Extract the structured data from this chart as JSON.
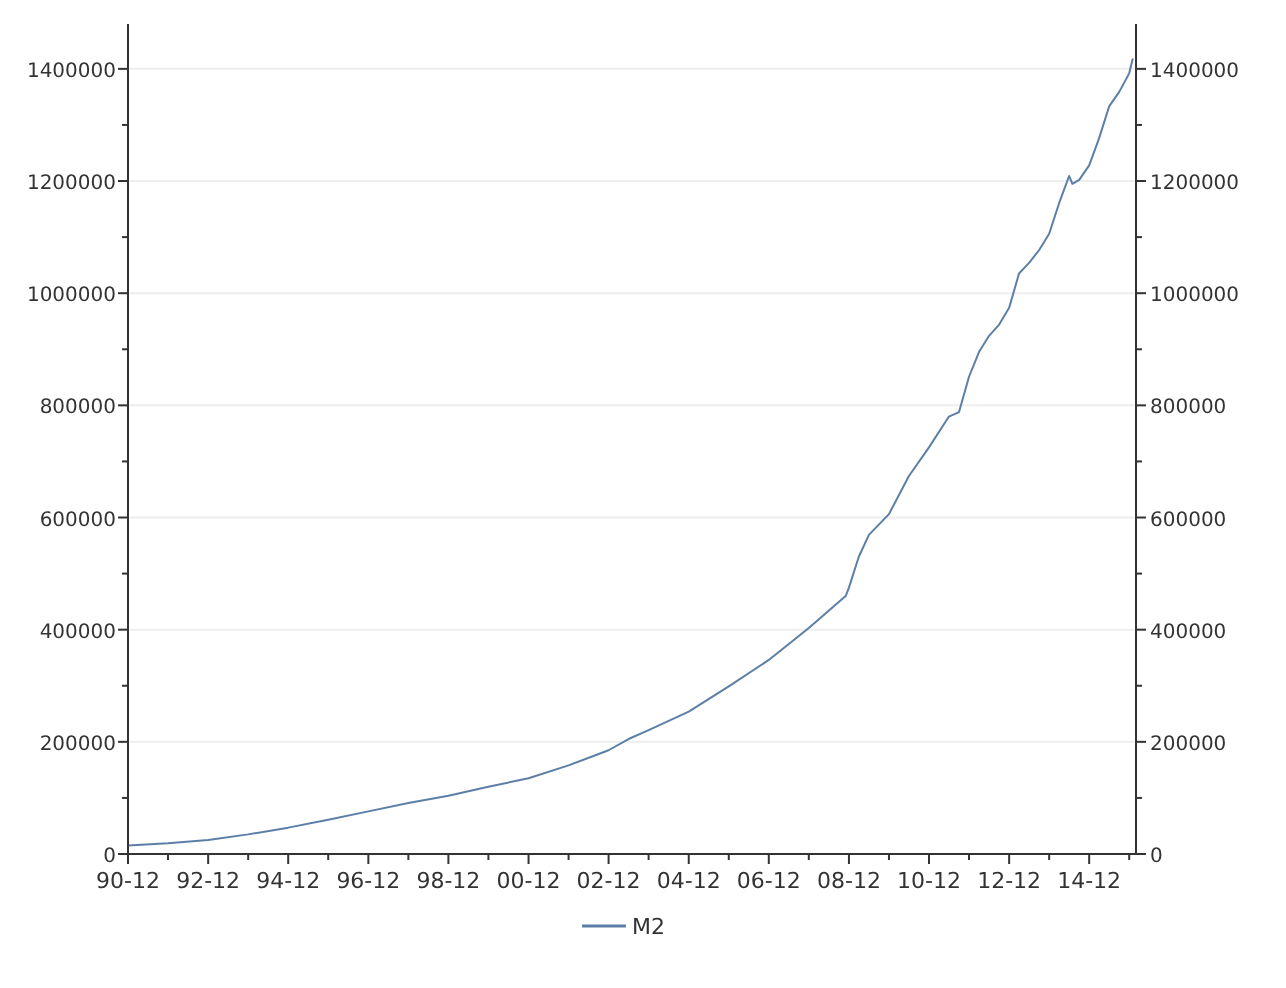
{
  "chart_data": {
    "type": "line",
    "x": [
      "1990-12",
      "1991-12",
      "1992-12",
      "1993-12",
      "1994-12",
      "1995-12",
      "1996-12",
      "1997-12",
      "1998-12",
      "1999-12",
      "2000-12",
      "2001-12",
      "2002-12",
      "2003-06",
      "2003-12",
      "2004-12",
      "2005-12",
      "2006-12",
      "2007-12",
      "2008-11",
      "2008-12",
      "2009-03",
      "2009-06",
      "2009-12",
      "2010-06",
      "2010-12",
      "2011-06",
      "2011-09",
      "2011-12",
      "2012-03",
      "2012-06",
      "2012-09",
      "2012-12",
      "2013-03",
      "2013-06",
      "2013-09",
      "2013-12",
      "2014-03",
      "2014-06",
      "2014-07",
      "2014-09",
      "2014-12",
      "2015-03",
      "2015-06",
      "2015-09",
      "2015-12",
      "2016-01"
    ],
    "series": [
      {
        "name": "M2",
        "color": "#5b7fa6",
        "values": [
          15000,
          19000,
          25000,
          35000,
          47000,
          61000,
          76000,
          91000,
          104000,
          120000,
          135000,
          158000,
          185000,
          205000,
          221000,
          254000,
          299000,
          346000,
          403000,
          460000,
          475000,
          530000,
          569000,
          606000,
          674000,
          725000,
          780000,
          788000,
          851000,
          895000,
          924000,
          944000,
          974000,
          1035000,
          1054000,
          1077000,
          1106000,
          1160000,
          1209000,
          1195000,
          1202000,
          1228000,
          1276000,
          1333000,
          1359000,
          1392000,
          1417000
        ]
      }
    ],
    "xlim": [
      "1990-12",
      "2016-02"
    ],
    "xticks": [
      {
        "value": "1990-12",
        "label": "90-12"
      },
      {
        "value": "1991-12",
        "label": null
      },
      {
        "value": "1992-12",
        "label": "92-12"
      },
      {
        "value": "1993-12",
        "label": null
      },
      {
        "value": "1994-12",
        "label": "94-12"
      },
      {
        "value": "1995-12",
        "label": null
      },
      {
        "value": "1996-12",
        "label": "96-12"
      },
      {
        "value": "1997-12",
        "label": null
      },
      {
        "value": "1998-12",
        "label": "98-12"
      },
      {
        "value": "1999-12",
        "label": null
      },
      {
        "value": "2000-12",
        "label": "00-12"
      },
      {
        "value": "2001-12",
        "label": null
      },
      {
        "value": "2002-12",
        "label": "02-12"
      },
      {
        "value": "2003-12",
        "label": null
      },
      {
        "value": "2004-12",
        "label": "04-12"
      },
      {
        "value": "2005-12",
        "label": null
      },
      {
        "value": "2006-12",
        "label": "06-12"
      },
      {
        "value": "2007-12",
        "label": null
      },
      {
        "value": "2008-12",
        "label": "08-12"
      },
      {
        "value": "2009-12",
        "label": null
      },
      {
        "value": "2010-12",
        "label": "10-12"
      },
      {
        "value": "2011-12",
        "label": null
      },
      {
        "value": "2012-12",
        "label": "12-12"
      },
      {
        "value": "2013-12",
        "label": null
      },
      {
        "value": "2014-12",
        "label": "14-12"
      },
      {
        "value": "2015-12",
        "label": null
      }
    ],
    "ylim": [
      0,
      1480000
    ],
    "yticks": [
      0,
      {
        "value": 100000,
        "label": null
      },
      200000,
      {
        "value": 300000,
        "label": null
      },
      400000,
      {
        "value": 500000,
        "label": null
      },
      600000,
      {
        "value": 700000,
        "label": null
      },
      800000,
      {
        "value": 900000,
        "label": null
      },
      1000000,
      {
        "value": 1100000,
        "label": null
      },
      1200000,
      {
        "value": 1300000,
        "label": null
      },
      1400000
    ],
    "y2lim": [
      0,
      1480000
    ],
    "y2ticks": [
      0,
      {
        "value": 100000,
        "label": null
      },
      200000,
      {
        "value": 300000,
        "label": null
      },
      400000,
      {
        "value": 500000,
        "label": null
      },
      600000,
      {
        "value": 700000,
        "label": null
      },
      800000,
      {
        "value": 900000,
        "label": null
      },
      1000000,
      {
        "value": 1100000,
        "label": null
      },
      1200000,
      {
        "value": 1300000,
        "label": null
      },
      1400000
    ],
    "grid": "y",
    "legend": "bottom",
    "marker": "none",
    "line_style": "solid"
  }
}
